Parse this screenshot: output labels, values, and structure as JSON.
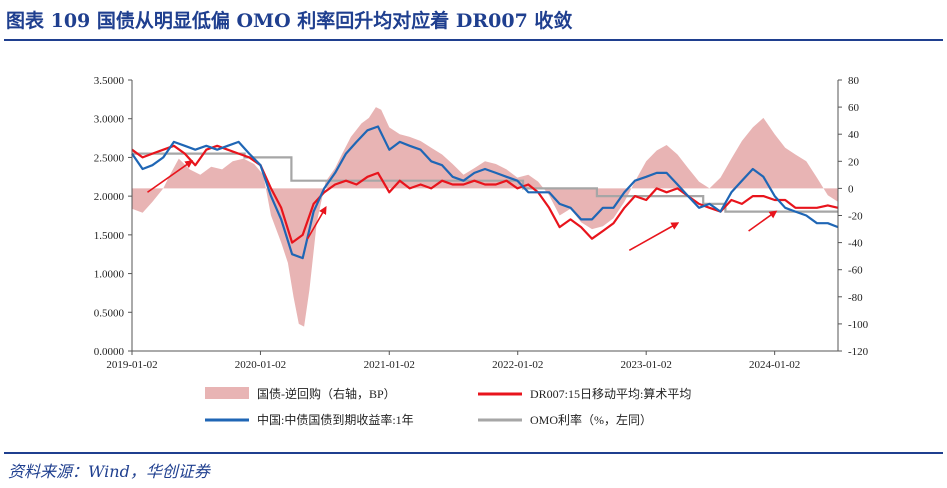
{
  "header": {
    "title": "图表 109    国债从明显低偏 OMO 利率回升均对应着 DR007 收敛"
  },
  "footer": {
    "source": "资料来源：Wind，华创证券"
  },
  "colors": {
    "spread": "#e8b4b4",
    "dr007": "#e8141c",
    "gov1y": "#1f66b5",
    "omo": "#a6a6a6",
    "arrow": "#e8141c",
    "title": "#1f3f8f"
  },
  "chart_data": {
    "type": "line",
    "title": "",
    "x_ticks": [
      "2019-01-02",
      "2020-01-02",
      "2021-01-02",
      "2022-01-02",
      "2023-01-02",
      "2024-01-02"
    ],
    "x_range": [
      "2019-01-02",
      "2024-06-30"
    ],
    "y_left": {
      "ticks": [
        "0.0000",
        "0.5000",
        "1.0000",
        "1.5000",
        "2.0000",
        "2.5000",
        "3.0000",
        "3.5000"
      ],
      "range": [
        0,
        3.5
      ]
    },
    "y_right": {
      "ticks": [
        "80",
        "60",
        "40",
        "20",
        "0",
        "-20",
        "-40",
        "-60",
        "-80",
        "-100",
        "-120"
      ],
      "range": [
        -120,
        80
      ]
    },
    "grid": false,
    "legend_position": "bottom",
    "annotations": "red arrows marking rebounds of the 1Y yield from below OMO",
    "series": [
      {
        "name": "国债-逆回购（右轴，BP）",
        "type": "area",
        "axis": "right",
        "points": [
          [
            "2019-01-02",
            -15
          ],
          [
            "2019-02-01",
            -18
          ],
          [
            "2019-03-01",
            -10
          ],
          [
            "2019-04-01",
            0
          ],
          [
            "2019-04-20",
            10
          ],
          [
            "2019-05-15",
            22
          ],
          [
            "2019-06-15",
            14
          ],
          [
            "2019-07-15",
            10
          ],
          [
            "2019-08-15",
            16
          ],
          [
            "2019-09-15",
            14
          ],
          [
            "2019-10-15",
            20
          ],
          [
            "2019-11-15",
            22
          ],
          [
            "2019-12-15",
            18
          ],
          [
            "2020-01-10",
            10
          ],
          [
            "2020-02-01",
            -20
          ],
          [
            "2020-03-01",
            -40
          ],
          [
            "2020-03-20",
            -55
          ],
          [
            "2020-04-05",
            -80
          ],
          [
            "2020-04-20",
            -100
          ],
          [
            "2020-05-05",
            -102
          ],
          [
            "2020-05-20",
            -75
          ],
          [
            "2020-06-10",
            -25
          ],
          [
            "2020-07-05",
            5
          ],
          [
            "2020-08-01",
            15
          ],
          [
            "2020-08-20",
            25
          ],
          [
            "2020-09-15",
            38
          ],
          [
            "2020-10-15",
            48
          ],
          [
            "2020-11-05",
            52
          ],
          [
            "2020-11-25",
            60
          ],
          [
            "2020-12-10",
            58
          ],
          [
            "2021-01-02",
            45
          ],
          [
            "2021-02-01",
            40
          ],
          [
            "2021-03-01",
            38
          ],
          [
            "2021-04-01",
            35
          ],
          [
            "2021-05-01",
            30
          ],
          [
            "2021-06-01",
            25
          ],
          [
            "2021-07-01",
            18
          ],
          [
            "2021-08-01",
            10
          ],
          [
            "2021-09-01",
            15
          ],
          [
            "2021-10-01",
            20
          ],
          [
            "2021-11-01",
            18
          ],
          [
            "2021-12-01",
            14
          ],
          [
            "2022-01-01",
            8
          ],
          [
            "2022-02-01",
            10
          ],
          [
            "2022-03-01",
            5
          ],
          [
            "2022-04-01",
            -5
          ],
          [
            "2022-05-01",
            -20
          ],
          [
            "2022-06-01",
            -15
          ],
          [
            "2022-07-01",
            -25
          ],
          [
            "2022-08-01",
            -30
          ],
          [
            "2022-09-01",
            -28
          ],
          [
            "2022-10-01",
            -22
          ],
          [
            "2022-11-01",
            -10
          ],
          [
            "2022-12-01",
            5
          ],
          [
            "2023-01-02",
            20
          ],
          [
            "2023-02-01",
            28
          ],
          [
            "2023-03-01",
            32
          ],
          [
            "2023-04-01",
            25
          ],
          [
            "2023-05-01",
            15
          ],
          [
            "2023-06-01",
            5
          ],
          [
            "2023-07-01",
            0
          ],
          [
            "2023-08-01",
            8
          ],
          [
            "2023-09-01",
            22
          ],
          [
            "2023-10-01",
            35
          ],
          [
            "2023-11-01",
            45
          ],
          [
            "2023-12-01",
            52
          ],
          [
            "2024-01-02",
            40
          ],
          [
            "2024-02-01",
            30
          ],
          [
            "2024-03-01",
            25
          ],
          [
            "2024-04-01",
            20
          ],
          [
            "2024-05-01",
            8
          ],
          [
            "2024-06-01",
            -5
          ],
          [
            "2024-06-30",
            -10
          ]
        ]
      },
      {
        "name": "DR007:15日移动平均:算术平均",
        "type": "line",
        "axis": "left",
        "points": [
          [
            "2019-01-02",
            2.6
          ],
          [
            "2019-02-01",
            2.5
          ],
          [
            "2019-03-01",
            2.55
          ],
          [
            "2019-04-01",
            2.6
          ],
          [
            "2019-05-01",
            2.65
          ],
          [
            "2019-06-01",
            2.55
          ],
          [
            "2019-07-01",
            2.4
          ],
          [
            "2019-08-01",
            2.6
          ],
          [
            "2019-09-01",
            2.65
          ],
          [
            "2019-10-01",
            2.6
          ],
          [
            "2019-11-01",
            2.55
          ],
          [
            "2019-12-01",
            2.5
          ],
          [
            "2020-01-02",
            2.4
          ],
          [
            "2020-02-01",
            2.1
          ],
          [
            "2020-03-01",
            1.85
          ],
          [
            "2020-04-01",
            1.4
          ],
          [
            "2020-05-01",
            1.5
          ],
          [
            "2020-06-01",
            1.9
          ],
          [
            "2020-07-01",
            2.05
          ],
          [
            "2020-08-01",
            2.15
          ],
          [
            "2020-09-01",
            2.2
          ],
          [
            "2020-10-01",
            2.15
          ],
          [
            "2020-11-01",
            2.25
          ],
          [
            "2020-12-01",
            2.3
          ],
          [
            "2021-01-02",
            2.05
          ],
          [
            "2021-02-01",
            2.2
          ],
          [
            "2021-03-01",
            2.1
          ],
          [
            "2021-04-01",
            2.15
          ],
          [
            "2021-05-01",
            2.1
          ],
          [
            "2021-06-01",
            2.2
          ],
          [
            "2021-07-01",
            2.15
          ],
          [
            "2021-08-01",
            2.15
          ],
          [
            "2021-09-01",
            2.2
          ],
          [
            "2021-10-01",
            2.15
          ],
          [
            "2021-11-01",
            2.15
          ],
          [
            "2021-12-01",
            2.2
          ],
          [
            "2022-01-01",
            2.1
          ],
          [
            "2022-02-01",
            2.15
          ],
          [
            "2022-03-01",
            2.05
          ],
          [
            "2022-04-01",
            1.85
          ],
          [
            "2022-05-01",
            1.6
          ],
          [
            "2022-06-01",
            1.7
          ],
          [
            "2022-07-01",
            1.6
          ],
          [
            "2022-08-01",
            1.45
          ],
          [
            "2022-09-01",
            1.55
          ],
          [
            "2022-10-01",
            1.65
          ],
          [
            "2022-11-01",
            1.85
          ],
          [
            "2022-12-01",
            2.0
          ],
          [
            "2023-01-02",
            1.95
          ],
          [
            "2023-02-01",
            2.1
          ],
          [
            "2023-03-01",
            2.05
          ],
          [
            "2023-04-01",
            2.1
          ],
          [
            "2023-05-01",
            2.0
          ],
          [
            "2023-06-01",
            1.9
          ],
          [
            "2023-07-01",
            1.85
          ],
          [
            "2023-08-01",
            1.8
          ],
          [
            "2023-09-01",
            1.95
          ],
          [
            "2023-10-01",
            1.9
          ],
          [
            "2023-11-01",
            2.0
          ],
          [
            "2023-12-01",
            2.0
          ],
          [
            "2024-01-02",
            1.95
          ],
          [
            "2024-02-01",
            1.95
          ],
          [
            "2024-03-01",
            1.85
          ],
          [
            "2024-04-01",
            1.85
          ],
          [
            "2024-05-01",
            1.85
          ],
          [
            "2024-06-01",
            1.88
          ],
          [
            "2024-06-30",
            1.85
          ]
        ]
      },
      {
        "name": "中国:中债国债到期收益率:1年",
        "type": "line",
        "axis": "left",
        "points": [
          [
            "2019-01-02",
            2.55
          ],
          [
            "2019-02-01",
            2.35
          ],
          [
            "2019-03-01",
            2.4
          ],
          [
            "2019-04-01",
            2.5
          ],
          [
            "2019-05-01",
            2.7
          ],
          [
            "2019-06-01",
            2.65
          ],
          [
            "2019-07-01",
            2.6
          ],
          [
            "2019-08-01",
            2.65
          ],
          [
            "2019-09-01",
            2.6
          ],
          [
            "2019-10-01",
            2.65
          ],
          [
            "2019-11-01",
            2.7
          ],
          [
            "2019-12-01",
            2.55
          ],
          [
            "2020-01-02",
            2.4
          ],
          [
            "2020-02-01",
            2.0
          ],
          [
            "2020-03-01",
            1.7
          ],
          [
            "2020-04-01",
            1.25
          ],
          [
            "2020-05-01",
            1.2
          ],
          [
            "2020-06-01",
            1.8
          ],
          [
            "2020-07-01",
            2.1
          ],
          [
            "2020-08-01",
            2.3
          ],
          [
            "2020-09-01",
            2.55
          ],
          [
            "2020-10-01",
            2.7
          ],
          [
            "2020-11-01",
            2.85
          ],
          [
            "2020-12-01",
            2.9
          ],
          [
            "2021-01-02",
            2.6
          ],
          [
            "2021-02-01",
            2.7
          ],
          [
            "2021-03-01",
            2.65
          ],
          [
            "2021-04-01",
            2.6
          ],
          [
            "2021-05-01",
            2.45
          ],
          [
            "2021-06-01",
            2.4
          ],
          [
            "2021-07-01",
            2.25
          ],
          [
            "2021-08-01",
            2.2
          ],
          [
            "2021-09-01",
            2.3
          ],
          [
            "2021-10-01",
            2.35
          ],
          [
            "2021-11-01",
            2.3
          ],
          [
            "2021-12-01",
            2.25
          ],
          [
            "2022-01-01",
            2.2
          ],
          [
            "2022-02-01",
            2.05
          ],
          [
            "2022-03-01",
            2.05
          ],
          [
            "2022-04-01",
            2.05
          ],
          [
            "2022-05-01",
            1.9
          ],
          [
            "2022-06-01",
            1.85
          ],
          [
            "2022-07-01",
            1.7
          ],
          [
            "2022-08-01",
            1.7
          ],
          [
            "2022-09-01",
            1.85
          ],
          [
            "2022-10-01",
            1.85
          ],
          [
            "2022-11-01",
            2.05
          ],
          [
            "2022-12-01",
            2.2
          ],
          [
            "2023-01-02",
            2.25
          ],
          [
            "2023-02-01",
            2.3
          ],
          [
            "2023-03-01",
            2.3
          ],
          [
            "2023-04-01",
            2.15
          ],
          [
            "2023-05-01",
            2.0
          ],
          [
            "2023-06-01",
            1.85
          ],
          [
            "2023-07-01",
            1.9
          ],
          [
            "2023-08-01",
            1.8
          ],
          [
            "2023-09-01",
            2.05
          ],
          [
            "2023-10-01",
            2.2
          ],
          [
            "2023-11-01",
            2.35
          ],
          [
            "2023-12-01",
            2.25
          ],
          [
            "2024-01-02",
            2.0
          ],
          [
            "2024-02-01",
            1.85
          ],
          [
            "2024-03-01",
            1.8
          ],
          [
            "2024-04-01",
            1.75
          ],
          [
            "2024-05-01",
            1.65
          ],
          [
            "2024-06-01",
            1.65
          ],
          [
            "2024-06-30",
            1.6
          ]
        ]
      },
      {
        "name": "OMO利率（%，左同）",
        "type": "step",
        "axis": "left",
        "points": [
          [
            "2019-01-02",
            2.55
          ],
          [
            "2019-11-18",
            2.5
          ],
          [
            "2020-03-30",
            2.2
          ],
          [
            "2020-12-31",
            2.2
          ],
          [
            "2022-01-17",
            2.1
          ],
          [
            "2022-08-15",
            2.0
          ],
          [
            "2023-06-13",
            1.9
          ],
          [
            "2023-08-15",
            1.8
          ],
          [
            "2024-06-30",
            1.8
          ]
        ]
      }
    ],
    "arrows": [
      {
        "from": [
          "2019-02-15",
          2.05
        ],
        "to": [
          "2019-06-20",
          2.45
        ]
      },
      {
        "from": [
          "2020-05-15",
          1.45
        ],
        "to": [
          "2020-07-05",
          1.85
        ]
      },
      {
        "from": [
          "2022-11-15",
          1.3
        ],
        "to": [
          "2023-04-01",
          1.65
        ]
      },
      {
        "from": [
          "2023-10-20",
          1.55
        ],
        "to": [
          "2024-01-05",
          1.8
        ]
      }
    ]
  }
}
